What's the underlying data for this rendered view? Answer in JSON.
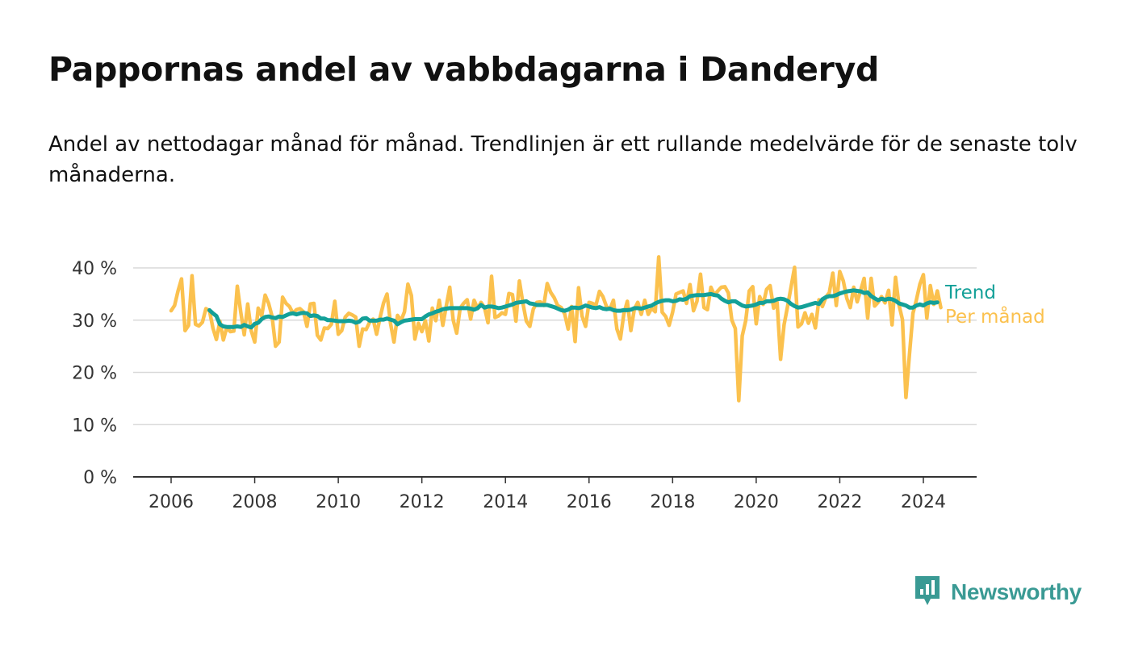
{
  "title": "Pappornas andel av vabbdagarna i Danderyd",
  "subtitle": "Andel av nettodagar månad för månad. Trendlinjen är ett rullande medelvärde för de senaste tolv månaderna.",
  "brand": {
    "name": "Newsworthy",
    "icon": "newsworthy-logo-icon",
    "color": "#3a9a94"
  },
  "chart_data": {
    "type": "line",
    "title": "",
    "xlabel": "",
    "ylabel": "",
    "x_unit": "year (decimal)",
    "xlim": [
      2006,
      2024.5
    ],
    "xticks": [
      2006,
      2008,
      2010,
      2012,
      2014,
      2016,
      2018,
      2020,
      2022,
      2024
    ],
    "xtick_labels": [
      "2006",
      "2008",
      "2010",
      "2012",
      "2014",
      "2016",
      "2018",
      "2020",
      "2022",
      "2024"
    ],
    "ylim": [
      0,
      40
    ],
    "yticks": [
      0,
      10,
      20,
      30,
      40
    ],
    "ytick_labels": [
      "0 %",
      "10 %",
      "20 %",
      "30 %",
      "40 %"
    ],
    "grid": "horizontal",
    "legend": "direct labels at line ends (right)",
    "series": [
      {
        "name": "Per månad",
        "color": "#fbc14e",
        "start_year": 2006.0,
        "step": "monthly",
        "values": [
          31.8,
          32.8,
          35.6,
          37.9,
          28.0,
          29.0,
          38.5,
          29.2,
          28.9,
          29.6,
          32.2,
          31.8,
          28.5,
          26.3,
          29.8,
          26.2,
          28.6,
          27.8,
          27.9,
          36.5,
          31.5,
          27.2,
          33.1,
          28.0,
          25.8,
          32.3,
          30.8,
          34.8,
          33.2,
          30.7,
          25.0,
          25.8,
          34.4,
          33.2,
          32.6,
          31.3,
          32.0,
          32.2,
          31.6,
          28.8,
          33.1,
          33.2,
          27.1,
          26.2,
          28.5,
          28.4,
          29.2,
          33.6,
          27.3,
          28.0,
          30.6,
          31.3,
          31.0,
          30.6,
          25.0,
          28.3,
          28.2,
          29.6,
          30.2,
          27.3,
          30.5,
          33.3,
          35.0,
          29.4,
          25.8,
          30.9,
          29.9,
          31.6,
          36.9,
          34.7,
          26.4,
          29.4,
          27.8,
          29.9,
          26.0,
          32.3,
          29.9,
          33.8,
          29.0,
          32.7,
          36.3,
          30.0,
          27.5,
          32.3,
          33.2,
          33.9,
          30.2,
          33.8,
          32.2,
          33.4,
          32.4,
          29.5,
          38.4,
          30.5,
          30.8,
          31.4,
          31.1,
          35.1,
          34.9,
          29.8,
          37.5,
          33.3,
          29.8,
          28.8,
          32.1,
          33.4,
          33.5,
          32.8,
          37.0,
          35.3,
          34.3,
          32.8,
          32.4,
          31.2,
          28.3,
          32.6,
          25.9,
          36.2,
          30.8,
          28.8,
          33.4,
          33.2,
          32.9,
          35.5,
          34.5,
          32.6,
          32.1,
          33.8,
          28.3,
          26.4,
          31.2,
          33.6,
          28.0,
          32.1,
          33.4,
          31.1,
          33.8,
          31.1,
          32.3,
          31.6,
          42.1,
          31.5,
          30.7,
          29.0,
          31.5,
          35.0,
          35.3,
          35.6,
          33.2,
          36.8,
          31.8,
          33.6,
          38.8,
          32.4,
          32.0,
          36.3,
          34.8,
          35.6,
          36.3,
          36.4,
          35.2,
          30.0,
          28.4,
          14.6,
          27.0,
          29.9,
          35.6,
          36.4,
          29.3,
          34.5,
          33.0,
          35.9,
          36.6,
          32.3,
          33.4,
          22.5,
          29.1,
          32.6,
          36.3,
          40.1,
          28.7,
          29.3,
          31.4,
          29.4,
          31.1,
          28.5,
          33.9,
          32.6,
          34.4,
          35.3,
          39.0,
          32.8,
          39.3,
          37.5,
          34.2,
          32.4,
          36.3,
          33.5,
          35.7,
          38.0,
          30.4,
          38.0,
          32.7,
          33.4,
          34.5,
          33.3,
          35.7,
          29.1,
          38.2,
          32.9,
          30.1,
          15.2,
          23.3,
          31.3,
          33.9,
          36.9,
          38.7,
          30.4,
          36.6,
          33.0,
          35.6,
          32.4
        ]
      },
      {
        "name": "Trend",
        "color": "#13a098",
        "start_year": 2006.917,
        "step": "monthly",
        "values": [
          31.9,
          31.3,
          30.8,
          29.2,
          28.8,
          28.7,
          28.7,
          28.7,
          28.8,
          28.7,
          29.1,
          28.8,
          28.6,
          29.3,
          29.5,
          30.2,
          30.6,
          30.7,
          30.5,
          30.4,
          30.7,
          30.6,
          30.9,
          31.2,
          31.3,
          31.1,
          31.3,
          31.4,
          31.3,
          30.8,
          30.9,
          30.8,
          30.3,
          30.3,
          30.0,
          30.0,
          29.9,
          29.8,
          29.8,
          29.8,
          29.9,
          29.8,
          29.5,
          29.7,
          30.3,
          30.4,
          29.9,
          29.9,
          29.9,
          30.1,
          30.1,
          30.3,
          30.1,
          29.9,
          29.2,
          29.6,
          29.9,
          30.0,
          30.1,
          30.2,
          30.2,
          30.2,
          30.7,
          31.1,
          31.3,
          31.6,
          31.8,
          32.1,
          32.2,
          32.3,
          32.3,
          32.3,
          32.3,
          32.3,
          32.3,
          32.2,
          32.0,
          32.3,
          32.9,
          32.4,
          32.6,
          32.6,
          32.5,
          32.3,
          32.4,
          32.6,
          32.8,
          33.0,
          33.3,
          33.4,
          33.5,
          33.6,
          33.2,
          33.1,
          32.9,
          32.9,
          32.9,
          32.9,
          32.7,
          32.5,
          32.2,
          31.9,
          31.8,
          32.0,
          32.4,
          32.4,
          32.3,
          32.5,
          32.8,
          32.6,
          32.4,
          32.3,
          32.5,
          32.2,
          32.1,
          32.2,
          31.9,
          31.8,
          31.8,
          31.9,
          31.9,
          32.0,
          32.3,
          32.3,
          32.2,
          32.4,
          32.6,
          32.8,
          33.2,
          33.5,
          33.7,
          33.8,
          33.8,
          33.6,
          33.7,
          34.0,
          33.9,
          34.1,
          34.6,
          34.7,
          34.8,
          34.8,
          34.8,
          34.9,
          35.0,
          34.8,
          34.7,
          34.1,
          33.7,
          33.4,
          33.6,
          33.6,
          33.2,
          32.8,
          32.6,
          32.7,
          32.8,
          33.0,
          33.3,
          33.3,
          33.6,
          33.6,
          33.7,
          34.0,
          34.1,
          34.0,
          33.7,
          33.1,
          32.7,
          32.4,
          32.5,
          32.7,
          32.9,
          33.1,
          33.3,
          33.1,
          34.0,
          34.4,
          34.6,
          34.6,
          34.8,
          35.1,
          35.3,
          35.5,
          35.6,
          35.7,
          35.6,
          35.5,
          35.2,
          35.3,
          34.6,
          34.2,
          33.8,
          34.1,
          33.9,
          34.1,
          34.0,
          33.7,
          33.2,
          33.0,
          32.8,
          32.4,
          32.4,
          32.8,
          33.0,
          32.8,
          33.2,
          33.4,
          33.3,
          33.4
        ]
      }
    ]
  }
}
